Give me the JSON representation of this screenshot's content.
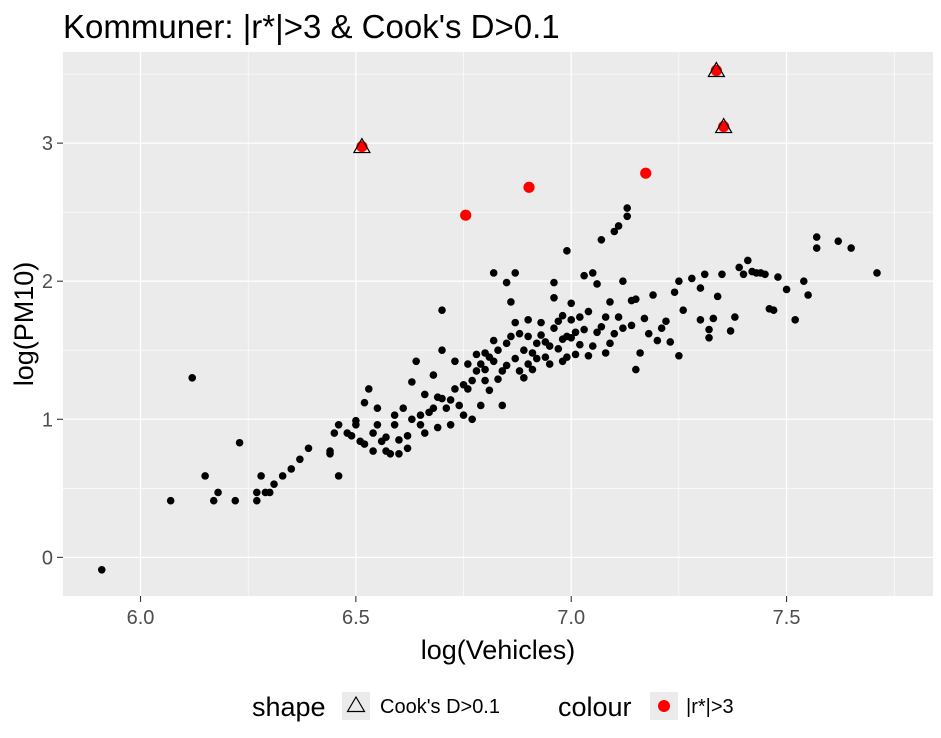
{
  "chart_data": {
    "type": "scatter",
    "title": "Kommuner: |r*|>3 & Cook's D>0.1",
    "xlabel": "log(Vehicles)",
    "ylabel": "log(PM10)",
    "xlim": [
      5.82,
      7.84
    ],
    "ylim": [
      -0.28,
      3.66
    ],
    "xticks": [
      6.0,
      6.5,
      7.0,
      7.5
    ],
    "xtick_labels": [
      "6.0",
      "6.5",
      "7.0",
      "7.5"
    ],
    "yticks": [
      0,
      1,
      2,
      3
    ],
    "ytick_labels": [
      "0",
      "1",
      "2",
      "3"
    ],
    "grid": true,
    "legend_position": "bottom",
    "colors": {
      "panel": "#ebebeb",
      "grid_major": "#ffffff",
      "points": "#000000",
      "highlight": "#ff0000"
    },
    "legend": {
      "shape_title": "shape",
      "shape_label": "Cook's D>0.1",
      "colour_title": "colour",
      "colour_label": "|r*|>3"
    },
    "series": [
      {
        "points": [
          [
            5.91,
            -0.09
          ],
          [
            6.07,
            0.41
          ],
          [
            6.12,
            1.3
          ],
          [
            6.15,
            0.59
          ],
          [
            6.17,
            0.41
          ],
          [
            6.18,
            0.47
          ],
          [
            6.22,
            0.41
          ],
          [
            6.23,
            0.83
          ],
          [
            6.27,
            0.47
          ],
          [
            6.27,
            0.41
          ],
          [
            6.28,
            0.59
          ],
          [
            6.29,
            0.47
          ],
          [
            6.3,
            0.47
          ],
          [
            6.31,
            0.53
          ],
          [
            6.33,
            0.59
          ],
          [
            6.35,
            0.64
          ],
          [
            6.37,
            0.71
          ],
          [
            6.39,
            0.79
          ],
          [
            6.44,
            0.77
          ],
          [
            6.44,
            0.75
          ],
          [
            6.45,
            0.9
          ],
          [
            6.46,
            0.59
          ],
          [
            6.46,
            0.96
          ],
          [
            6.48,
            0.9
          ],
          [
            6.49,
            0.88
          ],
          [
            6.5,
            0.96
          ],
          [
            6.5,
            0.99
          ],
          [
            6.51,
            0.84
          ],
          [
            6.52,
            0.82
          ],
          [
            6.52,
            1.12
          ],
          [
            6.53,
            1.22
          ],
          [
            6.54,
            0.77
          ],
          [
            6.54,
            0.9
          ],
          [
            6.55,
            0.96
          ],
          [
            6.55,
            1.08
          ],
          [
            6.56,
            0.84
          ],
          [
            6.57,
            0.77
          ],
          [
            6.57,
            0.87
          ],
          [
            6.58,
            0.75
          ],
          [
            6.59,
            0.96
          ],
          [
            6.59,
            1.03
          ],
          [
            6.6,
            0.75
          ],
          [
            6.6,
            0.85
          ],
          [
            6.61,
            1.08
          ],
          [
            6.62,
            0.88
          ],
          [
            6.62,
            0.79
          ],
          [
            6.63,
            1.0
          ],
          [
            6.63,
            1.27
          ],
          [
            6.64,
            1.42
          ],
          [
            6.65,
            0.96
          ],
          [
            6.65,
            1.03
          ],
          [
            6.66,
            0.9
          ],
          [
            6.66,
            1.18
          ],
          [
            6.67,
            1.05
          ],
          [
            6.68,
            1.08
          ],
          [
            6.68,
            1.32
          ],
          [
            6.69,
            0.94
          ],
          [
            6.69,
            1.16
          ],
          [
            6.7,
            1.15
          ],
          [
            6.7,
            1.5
          ],
          [
            6.7,
            1.79
          ],
          [
            6.71,
            1.08
          ],
          [
            6.72,
            0.96
          ],
          [
            6.72,
            1.14
          ],
          [
            6.73,
            1.22
          ],
          [
            6.73,
            1.42
          ],
          [
            6.74,
            1.1
          ],
          [
            6.75,
            1.03
          ],
          [
            6.75,
            1.25
          ],
          [
            6.76,
            1.22
          ],
          [
            6.76,
            1.4
          ],
          [
            6.77,
            1.0
          ],
          [
            6.77,
            1.28
          ],
          [
            6.78,
            1.35
          ],
          [
            6.78,
            1.47
          ],
          [
            6.79,
            1.4
          ],
          [
            6.79,
            1.1
          ],
          [
            6.8,
            1.48
          ],
          [
            6.8,
            1.28
          ],
          [
            6.8,
            1.36
          ],
          [
            6.81,
            1.21
          ],
          [
            6.81,
            1.45
          ],
          [
            6.82,
            1.42
          ],
          [
            6.82,
            1.57
          ],
          [
            6.82,
            2.06
          ],
          [
            6.83,
            1.29
          ],
          [
            6.83,
            1.5
          ],
          [
            6.84,
            1.1
          ],
          [
            6.84,
            1.35
          ],
          [
            6.85,
            1.39
          ],
          [
            6.85,
            1.55
          ],
          [
            6.85,
            1.99
          ],
          [
            6.86,
            1.85
          ],
          [
            6.86,
            1.6
          ],
          [
            6.87,
            1.44
          ],
          [
            6.87,
            1.7
          ],
          [
            6.87,
            2.06
          ],
          [
            6.88,
            1.35
          ],
          [
            6.88,
            1.62
          ],
          [
            6.89,
            1.3
          ],
          [
            6.89,
            1.5
          ],
          [
            6.9,
            1.4
          ],
          [
            6.9,
            1.6
          ],
          [
            6.9,
            1.72
          ],
          [
            6.91,
            1.48
          ],
          [
            6.91,
            1.36
          ],
          [
            6.92,
            1.55
          ],
          [
            6.92,
            1.44
          ],
          [
            6.93,
            1.61
          ],
          [
            6.93,
            1.7
          ],
          [
            6.94,
            1.45
          ],
          [
            6.94,
            1.56
          ],
          [
            6.95,
            1.53
          ],
          [
            6.95,
            1.4
          ],
          [
            6.96,
            1.66
          ],
          [
            6.96,
            1.88
          ],
          [
            6.96,
            1.99
          ],
          [
            6.97,
            1.51
          ],
          [
            6.97,
            1.71
          ],
          [
            6.98,
            1.42
          ],
          [
            6.98,
            1.58
          ],
          [
            6.98,
            1.75
          ],
          [
            6.99,
            1.45
          ],
          [
            6.99,
            1.6
          ],
          [
            6.99,
            2.22
          ],
          [
            7.0,
            1.59
          ],
          [
            7.0,
            1.72
          ],
          [
            7.0,
            1.84
          ],
          [
            7.01,
            1.47
          ],
          [
            7.01,
            1.63
          ],
          [
            7.02,
            1.54
          ],
          [
            7.02,
            1.74
          ],
          [
            7.03,
            1.65
          ],
          [
            7.03,
            2.04
          ],
          [
            7.04,
            1.46
          ],
          [
            7.04,
            1.78
          ],
          [
            7.05,
            1.53
          ],
          [
            7.05,
            2.06
          ],
          [
            7.06,
            1.63
          ],
          [
            7.06,
            1.98
          ],
          [
            7.07,
            1.67
          ],
          [
            7.07,
            2.3
          ],
          [
            7.08,
            1.48
          ],
          [
            7.08,
            1.74
          ],
          [
            7.09,
            1.85
          ],
          [
            7.09,
            1.55
          ],
          [
            7.1,
            1.62
          ],
          [
            7.1,
            2.36
          ],
          [
            7.11,
            1.74
          ],
          [
            7.11,
            2.4
          ],
          [
            7.12,
            2.0
          ],
          [
            7.12,
            1.66
          ],
          [
            7.13,
            2.47
          ],
          [
            7.13,
            2.53
          ],
          [
            7.14,
            1.86
          ],
          [
            7.14,
            1.68
          ],
          [
            7.15,
            1.36
          ],
          [
            7.15,
            1.87
          ],
          [
            7.16,
            1.48
          ],
          [
            7.17,
            1.73
          ],
          [
            7.18,
            1.62
          ],
          [
            7.19,
            1.9
          ],
          [
            7.2,
            1.57
          ],
          [
            7.21,
            1.66
          ],
          [
            7.22,
            1.71
          ],
          [
            7.23,
            1.56
          ],
          [
            7.24,
            1.92
          ],
          [
            7.25,
            1.46
          ],
          [
            7.25,
            2.0
          ],
          [
            7.26,
            1.79
          ],
          [
            7.28,
            2.02
          ],
          [
            7.3,
            1.95
          ],
          [
            7.3,
            1.72
          ],
          [
            7.31,
            2.05
          ],
          [
            7.32,
            1.59
          ],
          [
            7.32,
            1.65
          ],
          [
            7.33,
            1.73
          ],
          [
            7.34,
            1.89
          ],
          [
            7.35,
            2.05
          ],
          [
            7.37,
            1.64
          ],
          [
            7.38,
            1.74
          ],
          [
            7.39,
            2.1
          ],
          [
            7.4,
            2.05
          ],
          [
            7.41,
            2.15
          ],
          [
            7.42,
            2.07
          ],
          [
            7.43,
            2.06
          ],
          [
            7.44,
            2.06
          ],
          [
            7.45,
            2.05
          ],
          [
            7.46,
            1.8
          ],
          [
            7.47,
            1.79
          ],
          [
            7.48,
            2.03
          ],
          [
            7.5,
            1.94
          ],
          [
            7.52,
            1.72
          ],
          [
            7.54,
            2.0
          ],
          [
            7.55,
            1.9
          ],
          [
            7.57,
            2.32
          ],
          [
            7.57,
            2.24
          ],
          [
            7.62,
            2.29
          ],
          [
            7.65,
            2.24
          ],
          [
            7.71,
            2.06
          ]
        ]
      },
      {
        "points": [
          [
            6.514,
            2.975
          ],
          [
            6.755,
            2.478
          ],
          [
            6.902,
            2.68
          ],
          [
            7.173,
            2.782
          ],
          [
            7.337,
            3.526
          ],
          [
            7.354,
            3.12
          ]
        ]
      },
      {
        "points": [
          [
            6.514,
            2.975
          ],
          [
            7.337,
            3.526
          ],
          [
            7.354,
            3.12
          ]
        ]
      }
    ]
  }
}
